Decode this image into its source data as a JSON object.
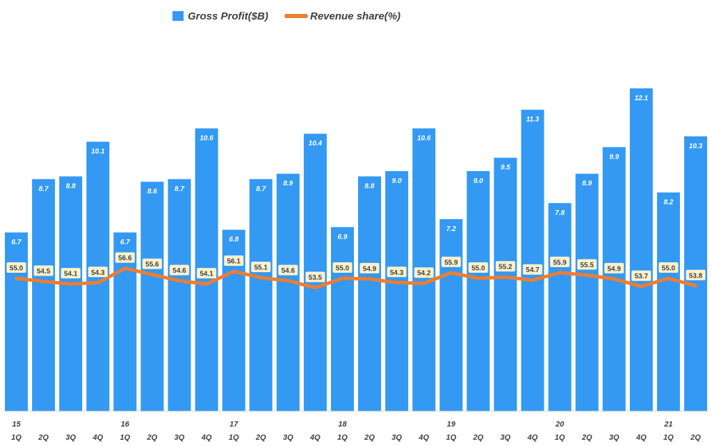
{
  "chart_data": {
    "type": "bar",
    "title": "",
    "xlabel": "",
    "ylabel": "",
    "ylim": [
      0,
      14
    ],
    "grid": false,
    "legend_position": "top-center",
    "categories": [
      "1Q",
      "2Q",
      "3Q",
      "4Q",
      "1Q",
      "2Q",
      "3Q",
      "4Q",
      "1Q",
      "2Q",
      "3Q",
      "4Q",
      "1Q",
      "2Q",
      "3Q",
      "4Q",
      "1Q",
      "2Q",
      "3Q",
      "4Q",
      "1Q",
      "2Q",
      "3Q",
      "4Q",
      "1Q",
      "2Q"
    ],
    "year_labels": [
      "15",
      "",
      "",
      "",
      "16",
      "",
      "",
      "",
      "17",
      "",
      "",
      "",
      "18",
      "",
      "",
      "",
      "19",
      "",
      "",
      "",
      "20",
      "",
      "",
      "",
      "21",
      ""
    ],
    "series": [
      {
        "name": "Gross Profit($B)",
        "type": "bar",
        "color": "#3399f3",
        "values": [
          6.7,
          8.7,
          8.8,
          10.1,
          6.7,
          8.6,
          8.7,
          10.6,
          6.8,
          8.7,
          8.9,
          10.4,
          6.9,
          8.8,
          9.0,
          10.6,
          7.2,
          9.0,
          9.5,
          11.3,
          7.8,
          8.9,
          9.9,
          12.1,
          8.2,
          10.3
        ]
      },
      {
        "name": "Revenue share(%)",
        "type": "line",
        "color": "#ed7d31",
        "values": [
          55.0,
          54.5,
          54.1,
          54.3,
          56.6,
          55.6,
          54.6,
          54.1,
          56.1,
          55.1,
          54.6,
          53.5,
          55.0,
          54.9,
          54.3,
          54.2,
          55.9,
          55.0,
          55.2,
          54.7,
          55.9,
          55.5,
          54.9,
          53.7,
          55.0,
          53.8
        ]
      }
    ],
    "bar_labels": [
      "6.7",
      "8.7",
      "8.8",
      "10.1",
      "6.7",
      "8.6",
      "8.7",
      "10.6",
      "6.8",
      "8.7",
      "8.9",
      "10.4",
      "6.9",
      "8.8",
      "9.0",
      "10.6",
      "7.2",
      "9.0",
      "9.5",
      "11.3",
      "7.8",
      "8.9",
      "9.9",
      "12.1",
      "8.2",
      "10.3"
    ],
    "line_labels": [
      "55.0",
      "54.5",
      "54.1",
      "54.3",
      "56.6",
      "55.6",
      "54.6",
      "54.1",
      "56.1",
      "55.1",
      "54.6",
      "53.5",
      "55.0",
      "54.9",
      "54.3",
      "54.2",
      "55.9",
      "55.0",
      "55.2",
      "54.7",
      "55.9",
      "55.5",
      "54.9",
      "53.7",
      "55.0",
      "53.8"
    ],
    "colors": {
      "bar": "#3399f3",
      "line": "#ed7d31",
      "label_box": "#fdf1cc",
      "axis": "#d9d9d9"
    }
  }
}
